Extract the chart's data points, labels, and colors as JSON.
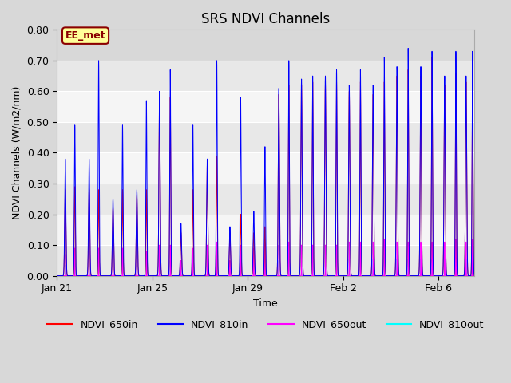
{
  "title": "SRS NDVI Channels",
  "xlabel": "Time",
  "ylabel": "NDVI Channels (W/m2/nm)",
  "ylim": [
    0.0,
    0.8
  ],
  "yticks": [
    0.0,
    0.1,
    0.2,
    0.3,
    0.4,
    0.5,
    0.6,
    0.7,
    0.8
  ],
  "annotation_text": "EE_met",
  "annotation_bg": "#ffff99",
  "annotation_border": "#8b0000",
  "annotation_text_color": "#8b0000",
  "legend_labels": [
    "NDVI_650in",
    "NDVI_810in",
    "NDVI_650out",
    "NDVI_810out"
  ],
  "legend_colors": [
    "#ff0000",
    "#0000ff",
    "#ff00ff",
    "#00ffff"
  ],
  "xtick_labels": [
    "Jan 21",
    "Jan 25",
    "Jan 29",
    "Feb 2",
    "Feb 6"
  ],
  "xtick_days": [
    0,
    4,
    8,
    12,
    16
  ],
  "total_days": 17.5,
  "title_fontsize": 12,
  "axis_label_fontsize": 9,
  "tick_fontsize": 9,
  "bg_light": "#f0f0f0",
  "bg_dark": "#d8d8d8",
  "pulses": [
    [
      0.35,
      0.025,
      0.28,
      0.38,
      0.07,
      0.035,
      0.2,
      0.08
    ],
    [
      0.75,
      0.02,
      0.29,
      0.49,
      0.09,
      0.04,
      0.15,
      0.06
    ],
    [
      1.35,
      0.025,
      0.28,
      0.38,
      0.08,
      0.04,
      0.2,
      0.08
    ],
    [
      1.75,
      0.02,
      0.28,
      0.7,
      0.09,
      0.04,
      0.15,
      0.06
    ],
    [
      2.35,
      0.025,
      0.22,
      0.25,
      0.05,
      0.025,
      0.18,
      0.07
    ],
    [
      2.75,
      0.02,
      0.28,
      0.49,
      0.09,
      0.04,
      0.15,
      0.06
    ],
    [
      3.35,
      0.025,
      0.26,
      0.28,
      0.07,
      0.035,
      0.18,
      0.07
    ],
    [
      3.75,
      0.02,
      0.28,
      0.57,
      0.08,
      0.04,
      0.15,
      0.06
    ],
    [
      4.3,
      0.025,
      0.58,
      0.6,
      0.1,
      0.05,
      0.22,
      0.09
    ],
    [
      4.75,
      0.02,
      0.58,
      0.67,
      0.1,
      0.05,
      0.18,
      0.08
    ],
    [
      5.2,
      0.025,
      0.14,
      0.17,
      0.05,
      0.025,
      0.14,
      0.06
    ],
    [
      5.7,
      0.02,
      0.28,
      0.49,
      0.09,
      0.04,
      0.15,
      0.06
    ],
    [
      6.3,
      0.025,
      0.36,
      0.38,
      0.1,
      0.05,
      0.2,
      0.08
    ],
    [
      6.7,
      0.02,
      0.39,
      0.7,
      0.11,
      0.055,
      0.18,
      0.07
    ],
    [
      7.25,
      0.025,
      0.14,
      0.16,
      0.05,
      0.025,
      0.14,
      0.06
    ],
    [
      7.7,
      0.02,
      0.2,
      0.58,
      0.1,
      0.05,
      0.15,
      0.06
    ],
    [
      8.25,
      0.025,
      0.14,
      0.21,
      0.09,
      0.04,
      0.16,
      0.07
    ],
    [
      8.72,
      0.02,
      0.16,
      0.42,
      0.11,
      0.055,
      0.15,
      0.06
    ],
    [
      9.3,
      0.025,
      0.59,
      0.61,
      0.1,
      0.05,
      0.22,
      0.09
    ],
    [
      9.72,
      0.02,
      0.62,
      0.7,
      0.11,
      0.055,
      0.18,
      0.08
    ],
    [
      10.25,
      0.025,
      0.62,
      0.64,
      0.1,
      0.05,
      0.22,
      0.09
    ],
    [
      10.72,
      0.02,
      0.63,
      0.65,
      0.1,
      0.05,
      0.18,
      0.08
    ],
    [
      11.25,
      0.025,
      0.62,
      0.65,
      0.1,
      0.05,
      0.22,
      0.09
    ],
    [
      11.72,
      0.02,
      0.63,
      0.67,
      0.1,
      0.05,
      0.18,
      0.08
    ],
    [
      12.25,
      0.025,
      0.6,
      0.62,
      0.11,
      0.055,
      0.22,
      0.09
    ],
    [
      12.72,
      0.02,
      0.63,
      0.67,
      0.11,
      0.055,
      0.18,
      0.08
    ],
    [
      13.25,
      0.025,
      0.59,
      0.62,
      0.11,
      0.055,
      0.22,
      0.09
    ],
    [
      13.72,
      0.02,
      0.63,
      0.71,
      0.12,
      0.06,
      0.18,
      0.08
    ],
    [
      14.25,
      0.025,
      0.65,
      0.68,
      0.11,
      0.055,
      0.22,
      0.09
    ],
    [
      14.72,
      0.02,
      0.67,
      0.74,
      0.11,
      0.055,
      0.18,
      0.08
    ],
    [
      15.25,
      0.025,
      0.65,
      0.68,
      0.11,
      0.055,
      0.22,
      0.09
    ],
    [
      15.72,
      0.02,
      0.71,
      0.73,
      0.11,
      0.055,
      0.18,
      0.08
    ],
    [
      16.25,
      0.025,
      0.62,
      0.65,
      0.11,
      0.055,
      0.22,
      0.09
    ],
    [
      16.72,
      0.02,
      0.66,
      0.73,
      0.12,
      0.06,
      0.18,
      0.08
    ],
    [
      17.15,
      0.025,
      0.63,
      0.65,
      0.11,
      0.055,
      0.2,
      0.08
    ],
    [
      17.42,
      0.02,
      0.65,
      0.73,
      0.12,
      0.06,
      0.18,
      0.08
    ]
  ]
}
